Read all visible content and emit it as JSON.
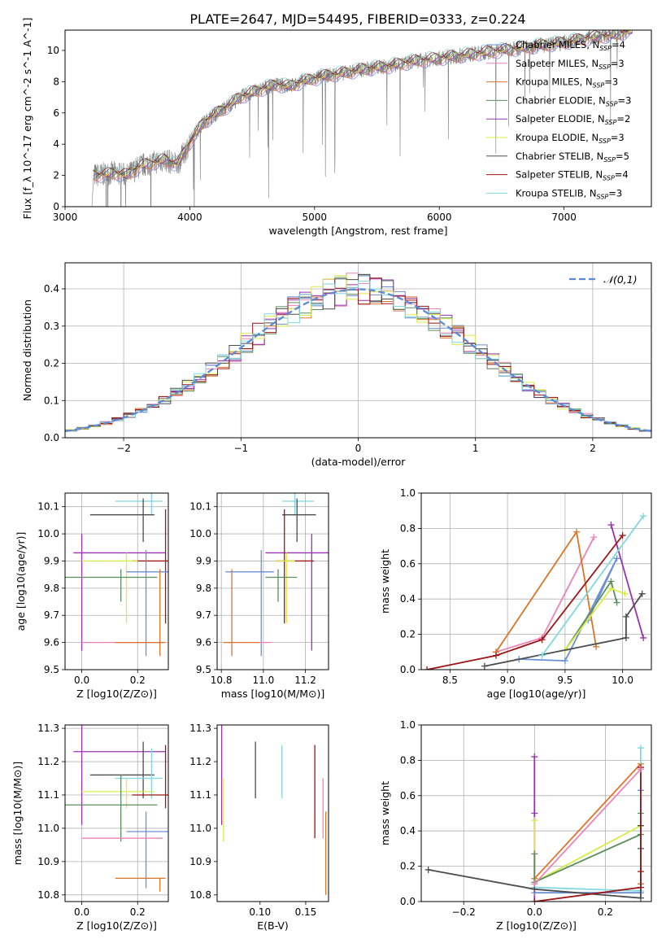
{
  "figure": {
    "title": "PLATE=2647, MJD=54495, FIBERID=0333, z=0.224"
  },
  "chart_data": [
    {
      "id": "spectrum",
      "type": "line",
      "xlabel": "wavelength [Angstrom, rest frame]",
      "ylabel": "Flux [f_λ 10^-17 erg cm^-2 s^-1 A^-1]",
      "xlim": [
        3000,
        7700
      ],
      "ylim": [
        0,
        11.3
      ],
      "xticks": [
        3000,
        4000,
        5000,
        6000,
        7000
      ],
      "yticks": [
        0,
        2,
        4,
        6,
        8,
        10
      ],
      "grid": false,
      "legend_position": "right",
      "continuum": {
        "x": [
          3215,
          3300,
          3400,
          3500,
          3600,
          3700,
          3800,
          3900,
          4000,
          4100,
          4200,
          4300,
          4400,
          4500,
          4600,
          4700,
          4800,
          4900,
          5000,
          5100,
          5200,
          5400,
          5600,
          5800,
          6000,
          6200,
          6400,
          6600,
          6800,
          7000,
          7200,
          7400,
          7550
        ],
        "y": [
          2.0,
          2.05,
          2.15,
          2.0,
          2.6,
          2.8,
          3.0,
          2.7,
          4.1,
          5.3,
          5.9,
          6.4,
          7.0,
          7.3,
          7.6,
          7.8,
          7.7,
          8.0,
          8.2,
          8.4,
          8.5,
          8.8,
          9.0,
          9.3,
          9.5,
          9.7,
          9.9,
          10.1,
          10.3,
          10.5,
          10.8,
          11.0,
          11.3
        ]
      },
      "series": [
        {
          "name": "Chabrier MILES, N_SSP=4",
          "color": "#6b8fd6"
        },
        {
          "name": "Salpeter MILES, N_SSP=3",
          "color": "#ee82b8"
        },
        {
          "name": "Kroupa MILES, N_SSP=3",
          "color": "#dd7428"
        },
        {
          "name": "Chabrier ELODIE, N_SSP=3",
          "color": "#5b8f5d"
        },
        {
          "name": "Salpeter ELODIE, N_SSP=2",
          "color": "#9b30b5"
        },
        {
          "name": "Kroupa ELODIE, N_SSP=3",
          "color": "#d8ec4a"
        },
        {
          "name": "Chabrier STELIB, N_SSP=5",
          "color": "#4d4d4d"
        },
        {
          "name": "Salpeter STELIB, N_SSP=4",
          "color": "#9e1515"
        },
        {
          "name": "Kroupa STELIB, N_SSP=3",
          "color": "#7fd8e0"
        }
      ],
      "data_color": "#808080"
    },
    {
      "id": "residuals",
      "type": "line",
      "xlabel": "(data-model)/error",
      "ylabel": "Normed distribution",
      "xlim": [
        -2.5,
        2.5
      ],
      "ylim": [
        0,
        0.47
      ],
      "xticks": [
        -2,
        -1,
        0,
        1,
        2
      ],
      "yticks": [
        0.0,
        0.1,
        0.2,
        0.3,
        0.4
      ],
      "grid": true,
      "legend_position": "top-right",
      "gaussian": {
        "name": "𝒩(0,1)",
        "color": "#5b8ad6",
        "mean": 0,
        "sigma": 1
      }
    },
    {
      "id": "age_vs_Z",
      "type": "scatter",
      "xlabel": "Z [log10(Z/Z⊙)]",
      "ylabel": "age [log10(age/yr)]",
      "xlim": [
        -0.06,
        0.31
      ],
      "ylim": [
        9.5,
        10.15
      ],
      "xticks": [
        0.0,
        0.2
      ],
      "yticks": [
        9.5,
        9.6,
        9.7,
        9.8,
        9.9,
        10.0,
        10.1
      ],
      "grid": true,
      "crosses": [
        {
          "color": "#7fd8e0",
          "x": 0.25,
          "xerr": [
            0.13,
            0.04
          ],
          "y": 10.12,
          "yerr": [
            0.05,
            0.03
          ]
        },
        {
          "color": "#4d4d4d",
          "x": 0.22,
          "xerr": [
            0.19,
            0.04
          ],
          "y": 10.07,
          "yerr": [
            0.1,
            0.06
          ]
        },
        {
          "color": "#9b30b5",
          "x": 0.0,
          "xerr": [
            0.03,
            0.3
          ],
          "y": 9.93,
          "yerr": [
            0.36,
            0.07
          ]
        },
        {
          "color": "#9e1515",
          "x": 0.3,
          "xerr": [
            0.12,
            0.01
          ],
          "y": 9.9,
          "yerr": [
            0.23,
            0.19
          ]
        },
        {
          "color": "#d8ec4a",
          "x": 0.16,
          "xerr": [
            0.16,
            0.04
          ],
          "y": 9.9,
          "yerr": [
            0.23,
            0.03
          ]
        },
        {
          "color": "#6b8fd6",
          "x": 0.23,
          "xerr": [
            0.07,
            0.08
          ],
          "y": 9.86,
          "yerr": [
            0.31,
            0.08
          ]
        },
        {
          "color": "#5b8f5d",
          "x": 0.14,
          "xerr": [
            0.2,
            0.13
          ],
          "y": 9.84,
          "yerr": [
            0.09,
            0.03
          ]
        },
        {
          "color": "#ee82b8",
          "x": 0.0,
          "xerr": [
            0.0,
            0.29
          ],
          "y": 9.6,
          "yerr": [
            0.0,
            0.0
          ]
        },
        {
          "color": "#dd7428",
          "x": 0.28,
          "xerr": [
            0.16,
            0.02
          ],
          "y": 9.6,
          "yerr": [
            0.05,
            0.27
          ]
        }
      ]
    },
    {
      "id": "age_vs_mass",
      "type": "scatter",
      "xlabel": "mass [log10(M/M⊙)]",
      "ylabel": "",
      "xlim": [
        10.78,
        11.31
      ],
      "ylim": [
        9.5,
        10.15
      ],
      "xticks": [
        10.8,
        11.0,
        11.2
      ],
      "yticks": [
        9.5,
        9.6,
        9.7,
        9.8,
        9.9,
        10.0,
        10.1
      ],
      "grid": true,
      "crosses": [
        {
          "color": "#7fd8e0",
          "x": 11.15,
          "xerr": [
            0.06,
            0.09
          ],
          "y": 10.12,
          "yerr": [
            0.05,
            0.03
          ]
        },
        {
          "color": "#4d4d4d",
          "x": 11.16,
          "xerr": [
            0.07,
            0.09
          ],
          "y": 10.07,
          "yerr": [
            0.1,
            0.06
          ]
        },
        {
          "color": "#9b30b5",
          "x": 11.23,
          "xerr": [
            0.22,
            0.08
          ],
          "y": 9.93,
          "yerr": [
            0.36,
            0.07
          ]
        },
        {
          "color": "#9e1515",
          "x": 11.1,
          "xerr": [
            0.04,
            0.14
          ],
          "y": 9.9,
          "yerr": [
            0.23,
            0.19
          ]
        },
        {
          "color": "#d8ec4a",
          "x": 11.11,
          "xerr": [
            0.05,
            0.04
          ],
          "y": 9.9,
          "yerr": [
            0.23,
            0.03
          ]
        },
        {
          "color": "#6b8fd6",
          "x": 10.99,
          "xerr": [
            0.17,
            0.06
          ],
          "y": 9.86,
          "yerr": [
            0.31,
            0.08
          ]
        },
        {
          "color": "#5b8f5d",
          "x": 11.07,
          "xerr": [
            0.06,
            0.09
          ],
          "y": 9.84,
          "yerr": [
            0.09,
            0.03
          ]
        },
        {
          "color": "#ee82b8",
          "x": 10.97,
          "xerr": [
            0.0,
            0.07
          ],
          "y": 9.6,
          "yerr": [
            0.0,
            0.0
          ]
        },
        {
          "color": "#dd7428",
          "x": 10.85,
          "xerr": [
            0.04,
            0.13
          ],
          "y": 9.6,
          "yerr": [
            0.05,
            0.27
          ]
        }
      ]
    },
    {
      "id": "massweight_vs_age",
      "type": "line",
      "xlabel": "age [log10(age/yr)]",
      "ylabel": "mass weight",
      "xlim": [
        8.25,
        10.25
      ],
      "ylim": [
        0.0,
        1.0
      ],
      "xticks": [
        8.5,
        9.0,
        9.5,
        10.0
      ],
      "yticks": [
        0.0,
        0.2,
        0.4,
        0.6,
        0.8,
        1.0
      ],
      "grid": true,
      "series": [
        {
          "color": "#6b8fd6",
          "x": [
            9.1,
            9.5,
            9.95,
            9.7
          ],
          "y": [
            0.06,
            0.05,
            0.63,
            0.28
          ]
        },
        {
          "color": "#ee82b8",
          "x": [
            8.9,
            9.3,
            9.75
          ],
          "y": [
            0.1,
            0.18,
            0.75
          ]
        },
        {
          "color": "#dd7428",
          "x": [
            8.9,
            9.6,
            9.77
          ],
          "y": [
            0.1,
            0.78,
            0.13
          ]
        },
        {
          "color": "#5b8f5d",
          "x": [
            9.5,
            9.9,
            9.95
          ],
          "y": [
            0.11,
            0.5,
            0.38
          ]
        },
        {
          "color": "#9b30b5",
          "x": [
            9.9,
            10.18
          ],
          "y": [
            0.82,
            0.18
          ]
        },
        {
          "color": "#d8ec4a",
          "x": [
            9.5,
            9.9,
            10.02
          ],
          "y": [
            0.11,
            0.46,
            0.43
          ]
        },
        {
          "color": "#4d4d4d",
          "x": [
            8.8,
            10.03,
            10.03,
            10.17
          ],
          "y": [
            0.02,
            0.18,
            0.3,
            0.43
          ]
        },
        {
          "color": "#9e1515",
          "x": [
            8.3,
            8.9,
            9.3,
            10.0
          ],
          "y": [
            0.0,
            0.08,
            0.17,
            0.76
          ]
        },
        {
          "color": "#7fd8e0",
          "x": [
            9.3,
            10.18
          ],
          "y": [
            0.08,
            0.87
          ]
        }
      ]
    },
    {
      "id": "mass_vs_Z",
      "type": "scatter",
      "xlabel": "Z [log10(Z/Z⊙)]",
      "ylabel": "mass [log10(M/M⊙)]",
      "xlim": [
        -0.06,
        0.31
      ],
      "ylim": [
        10.78,
        11.31
      ],
      "xticks": [
        0.0,
        0.2
      ],
      "yticks": [
        10.8,
        10.9,
        11.0,
        11.1,
        11.2,
        11.3
      ],
      "grid": true,
      "crosses": [
        {
          "color": "#9b30b5",
          "x": 0.0,
          "xerr": [
            0.03,
            0.3
          ],
          "y": 11.23,
          "yerr": [
            0.22,
            0.08
          ]
        },
        {
          "color": "#4d4d4d",
          "x": 0.22,
          "xerr": [
            0.19,
            0.04
          ],
          "y": 11.16,
          "yerr": [
            0.07,
            0.1
          ]
        },
        {
          "color": "#7fd8e0",
          "x": 0.25,
          "xerr": [
            0.13,
            0.04
          ],
          "y": 11.15,
          "yerr": [
            0.06,
            0.09
          ]
        },
        {
          "color": "#d8ec4a",
          "x": 0.16,
          "xerr": [
            0.16,
            0.1
          ],
          "y": 11.11,
          "yerr": [
            0.05,
            0.04
          ]
        },
        {
          "color": "#9e1515",
          "x": 0.3,
          "xerr": [
            0.12,
            0.01
          ],
          "y": 11.1,
          "yerr": [
            0.04,
            0.15
          ]
        },
        {
          "color": "#5b8f5d",
          "x": 0.14,
          "xerr": [
            0.2,
            0.13
          ],
          "y": 11.07,
          "yerr": [
            0.11,
            0.09
          ]
        },
        {
          "color": "#6b8fd6",
          "x": 0.23,
          "xerr": [
            0.07,
            0.08
          ],
          "y": 10.99,
          "yerr": [
            0.17,
            0.06
          ]
        },
        {
          "color": "#ee82b8",
          "x": 0.0,
          "xerr": [
            0.0,
            0.29
          ],
          "y": 10.97,
          "yerr": [
            0.0,
            0.0
          ]
        },
        {
          "color": "#dd7428",
          "x": 0.28,
          "xerr": [
            0.16,
            0.02
          ],
          "y": 10.85,
          "yerr": [
            0.04,
            0.0
          ]
        }
      ]
    },
    {
      "id": "mass_vs_ebv",
      "type": "scatter",
      "xlabel": "E(B-V)",
      "ylabel": "",
      "xlim": [
        0.053,
        0.175
      ],
      "ylim": [
        10.78,
        11.31
      ],
      "xticks": [
        0.1,
        0.15
      ],
      "yticks": [
        10.8,
        10.9,
        11.0,
        11.1,
        11.2,
        11.3
      ],
      "grid": false,
      "bars": [
        {
          "color": "#9b30b5",
          "x": 0.058,
          "y0": 11.01,
          "y1": 11.31
        },
        {
          "color": "#d8ec4a",
          "x": 0.06,
          "y0": 10.96,
          "y1": 11.15
        },
        {
          "color": "#4d4d4d",
          "x": 0.095,
          "y0": 11.09,
          "y1": 11.26
        },
        {
          "color": "#7fd8e0",
          "x": 0.124,
          "y0": 11.09,
          "y1": 11.25
        },
        {
          "color": "#9e1515",
          "x": 0.16,
          "y0": 10.97,
          "y1": 11.25
        },
        {
          "color": "#ee82b8",
          "x": 0.169,
          "y0": 10.97,
          "y1": 11.15
        },
        {
          "color": "#dd7428",
          "x": 0.172,
          "y0": 10.8,
          "y1": 11.05
        }
      ]
    },
    {
      "id": "massweight_vs_Z",
      "type": "line",
      "xlabel": "Z [log10(Z/Z⊙)]",
      "ylabel": "mass weight",
      "xlim": [
        -0.32,
        0.33
      ],
      "ylim": [
        0.0,
        1.0
      ],
      "xticks": [
        -0.2,
        0.0,
        0.2
      ],
      "yticks": [
        0.0,
        0.2,
        0.4,
        0.6,
        0.8,
        1.0
      ],
      "grid": true,
      "series": [
        {
          "color": "#9b30b5",
          "x": [
            0.0,
            0.0,
            0.0
          ],
          "y": [
            0.82,
            0.5,
            0.0
          ]
        },
        {
          "color": "#dd7428",
          "x": [
            0.0,
            0.3,
            0.3
          ],
          "y": [
            0.13,
            0.78,
            0.1
          ]
        },
        {
          "color": "#d8ec4a",
          "x": [
            0.0,
            0.0,
            0.3
          ],
          "y": [
            0.46,
            0.11,
            0.43
          ]
        },
        {
          "color": "#5b8f5d",
          "x": [
            0.0,
            0.0,
            0.3,
            0.3
          ],
          "y": [
            0.27,
            0.11,
            0.38,
            0.5
          ]
        },
        {
          "color": "#6b8fd6",
          "x": [
            0.0,
            0.3,
            0.3
          ],
          "y": [
            0.05,
            0.05,
            0.63
          ]
        },
        {
          "color": "#7fd8e0",
          "x": [
            0.0,
            0.3,
            0.3
          ],
          "y": [
            0.08,
            0.06,
            0.87
          ]
        },
        {
          "color": "#4d4d4d",
          "x": [
            -0.3,
            0.0,
            0.3,
            0.3,
            0.3
          ],
          "y": [
            0.18,
            0.07,
            0.02,
            0.3,
            0.43
          ]
        },
        {
          "color": "#9e1515",
          "x": [
            0.0,
            0.3,
            0.3,
            0.3
          ],
          "y": [
            0.0,
            0.08,
            0.17,
            0.76
          ]
        },
        {
          "color": "#ee82b8",
          "x": [
            0.0,
            0.3
          ],
          "y": [
            0.1,
            0.75
          ]
        }
      ]
    }
  ]
}
